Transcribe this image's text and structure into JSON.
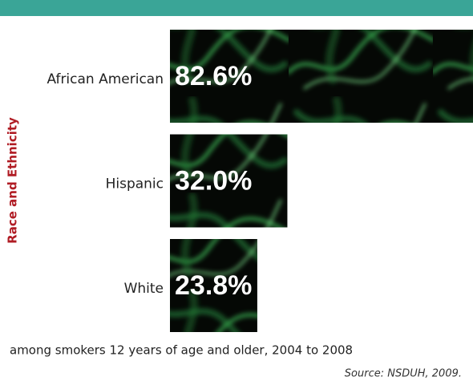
{
  "chart_data": {
    "type": "bar",
    "orientation": "horizontal",
    "y_axis_label": "Race and Ethnicity",
    "categories": [
      "African American",
      "Hispanic",
      "White"
    ],
    "values": [
      82.6,
      32.0,
      23.8
    ],
    "value_labels": [
      "82.6%",
      "32.0%",
      "23.8%"
    ],
    "color": "#050805",
    "footnote": "among smokers 12 years of age and older, 2004 to 2008",
    "source": "Source: NSDUH, 2009."
  }
}
